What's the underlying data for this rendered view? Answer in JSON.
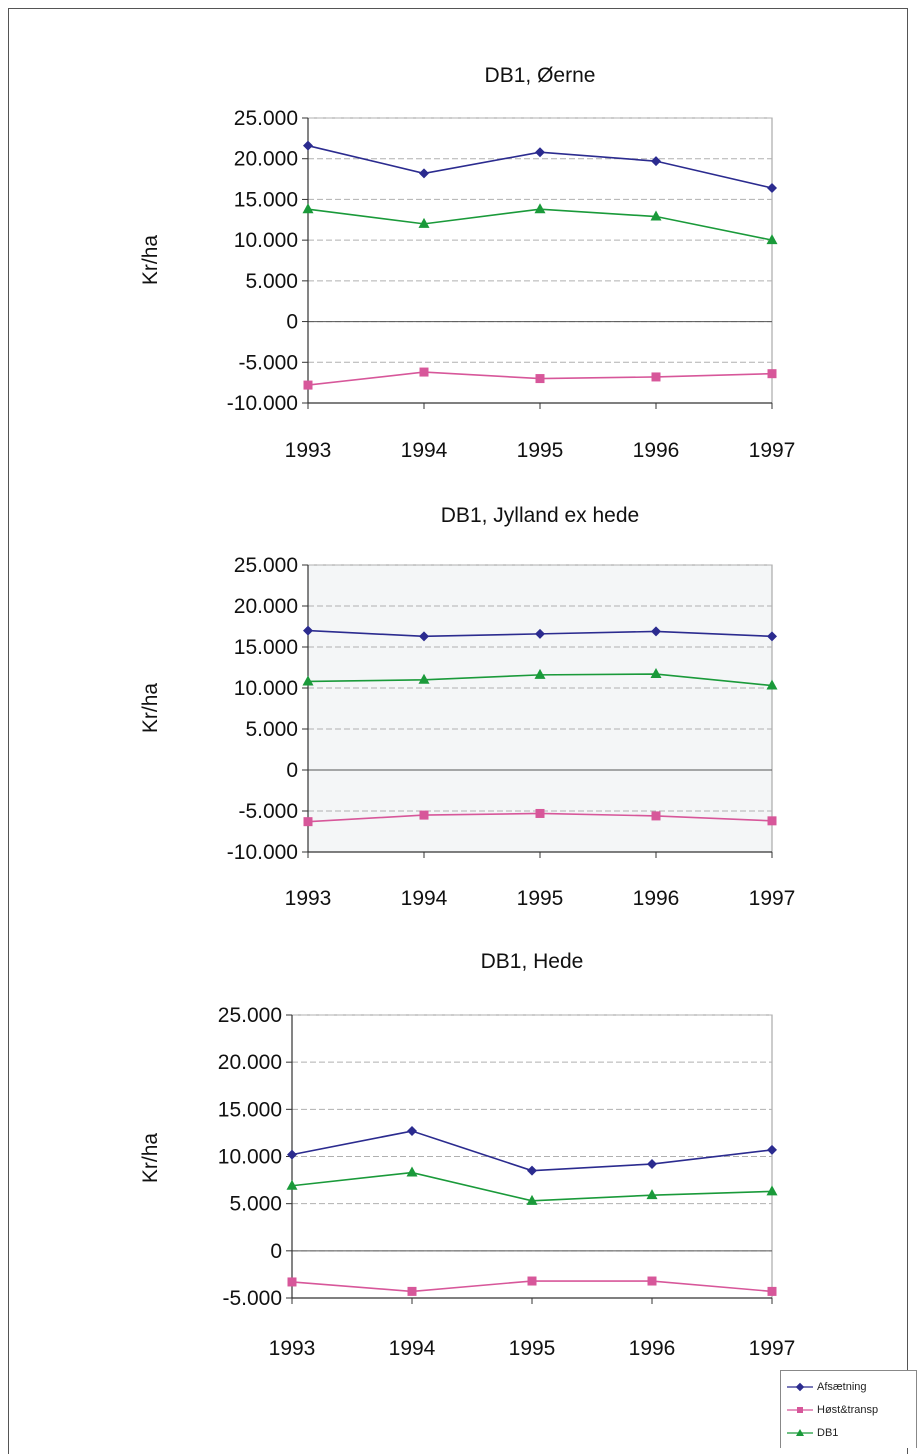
{
  "chart_data": [
    {
      "type": "line",
      "title": "DB1, Øerne",
      "ylabel": "Kr/ha",
      "categories": [
        "1993",
        "1994",
        "1995",
        "1996",
        "1997"
      ],
      "ylim": [
        -10000,
        25000
      ],
      "yticks": [
        "25.000",
        "20.000",
        "15.000",
        "10.000",
        "5.000",
        "0",
        "-5.000",
        "-10.000"
      ],
      "plot_bg": "#ffffff",
      "series": [
        {
          "name": "Afsætning",
          "color": "#2b2b8f",
          "marker": "diamond",
          "values": [
            21600,
            18200,
            20800,
            19700,
            16400
          ]
        },
        {
          "name": "Høst&transp",
          "color": "#d7579a",
          "marker": "square",
          "values": [
            -7800,
            -6200,
            -7000,
            -6800,
            -6400
          ]
        },
        {
          "name": "DB1",
          "color": "#1a9a3a",
          "marker": "triangle",
          "values": [
            13800,
            12000,
            13800,
            12900,
            10000
          ]
        }
      ]
    },
    {
      "type": "line",
      "title": "DB1, Jylland ex hede",
      "ylabel": "Kr/ha",
      "categories": [
        "1993",
        "1994",
        "1995",
        "1996",
        "1997"
      ],
      "ylim": [
        -10000,
        25000
      ],
      "yticks": [
        "25.000",
        "20.000",
        "15.000",
        "10.000",
        "5.000",
        "0",
        "-5.000",
        "-10.000"
      ],
      "plot_bg": "#f4f6f7",
      "series": [
        {
          "name": "Afsætning",
          "color": "#2b2b8f",
          "marker": "diamond",
          "values": [
            17000,
            16300,
            16600,
            16900,
            16300
          ]
        },
        {
          "name": "Høst&transp",
          "color": "#d7579a",
          "marker": "square",
          "values": [
            -6300,
            -5500,
            -5300,
            -5600,
            -6200
          ]
        },
        {
          "name": "DB1",
          "color": "#1a9a3a",
          "marker": "triangle",
          "values": [
            10800,
            11000,
            11600,
            11700,
            10300
          ]
        }
      ]
    },
    {
      "type": "line",
      "title": "DB1, Hede",
      "ylabel": "Kr/ha",
      "categories": [
        "1993",
        "1994",
        "1995",
        "1996",
        "1997"
      ],
      "ylim": [
        -5000,
        25000
      ],
      "yticks": [
        "25.000",
        "20.000",
        "15.000",
        "10.000",
        "5.000",
        "0",
        "-5.000"
      ],
      "plot_bg": "#ffffff",
      "series": [
        {
          "name": "Afsætning",
          "color": "#2b2b8f",
          "marker": "diamond",
          "values": [
            10200,
            12700,
            8500,
            9200,
            10700
          ]
        },
        {
          "name": "Høst&transp",
          "color": "#d7579a",
          "marker": "square",
          "values": [
            -3300,
            -4300,
            -3200,
            -3200,
            -4300
          ]
        },
        {
          "name": "DB1",
          "color": "#1a9a3a",
          "marker": "triangle",
          "values": [
            6900,
            8300,
            5300,
            5900,
            6300
          ]
        }
      ]
    }
  ],
  "legend": {
    "items": [
      {
        "label": "Afsætning",
        "color": "#2b2b8f",
        "marker": "diamond"
      },
      {
        "label": "Høst&transp",
        "color": "#d7579a",
        "marker": "square"
      },
      {
        "label": "DB1",
        "color": "#1a9a3a",
        "marker": "triangle"
      }
    ]
  }
}
